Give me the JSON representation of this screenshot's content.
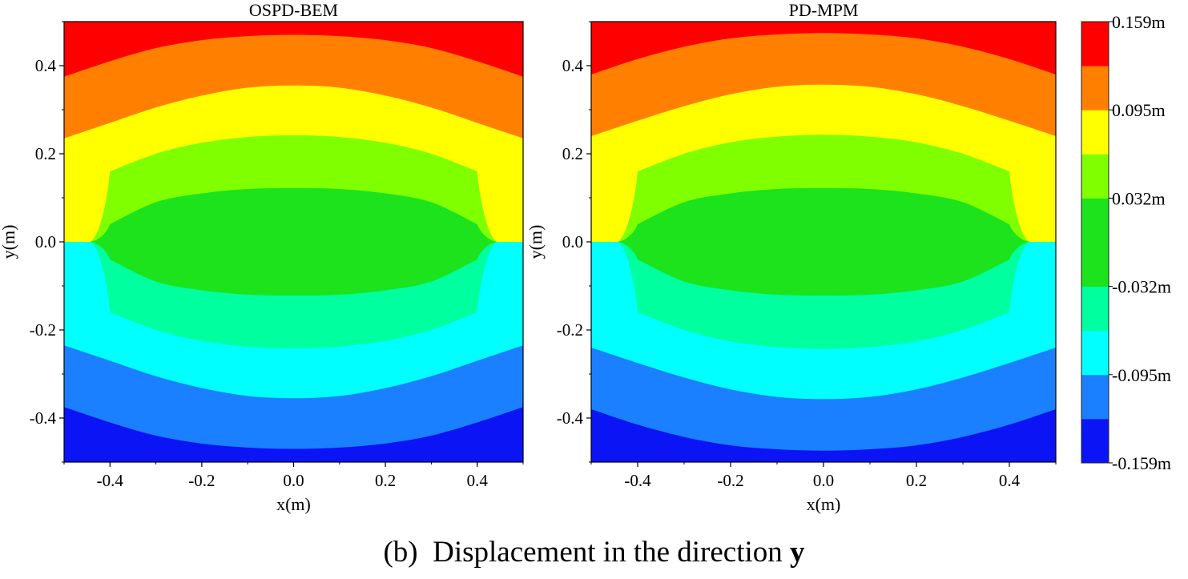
{
  "chart_data": [
    {
      "type": "contour",
      "title": "OSPD-BEM",
      "xlabel": "x(m)",
      "ylabel": "y(m)",
      "xlim": [
        -0.5,
        0.5
      ],
      "ylim": [
        -0.5,
        0.5
      ],
      "xticks": [
        -0.4,
        -0.2,
        0.0,
        0.2,
        0.4
      ],
      "xtick_labels": [
        "-0.4",
        "-0.2",
        "0.0",
        "0.2",
        "0.4"
      ],
      "yticks": [
        -0.4,
        -0.2,
        0.0,
        0.2,
        0.4
      ],
      "ytick_labels": [
        "-0.4",
        "-0.2",
        "0.0",
        "0.2",
        "0.4"
      ],
      "contour_boundaries": {
        "upper": {
          "x": [
            -0.5,
            -0.4,
            -0.3,
            -0.2,
            -0.1,
            0.0,
            0.1,
            0.2,
            0.3,
            0.4,
            0.5
          ],
          "0.127": [
            0.375,
            0.41,
            0.44,
            0.458,
            0.467,
            0.47,
            0.467,
            0.458,
            0.44,
            0.41,
            0.375
          ],
          "0.095": [
            0.235,
            0.27,
            0.305,
            0.332,
            0.35,
            0.355,
            0.35,
            0.332,
            0.305,
            0.27,
            0.235
          ],
          "0.064": [
            null,
            0.16,
            0.2,
            0.225,
            0.238,
            0.242,
            0.238,
            0.225,
            0.2,
            0.16,
            null
          ],
          "0.032": [
            null,
            0.04,
            0.09,
            0.11,
            0.12,
            0.122,
            0.12,
            0.11,
            0.09,
            0.04,
            null
          ]
        },
        "lower": {
          "x": [
            -0.5,
            -0.4,
            -0.3,
            -0.2,
            -0.1,
            0.0,
            0.1,
            0.2,
            0.3,
            0.4,
            0.5
          ],
          "-0.032": [
            null,
            -0.04,
            -0.09,
            -0.11,
            -0.12,
            -0.122,
            -0.12,
            -0.11,
            -0.09,
            -0.04,
            null
          ],
          "-0.064": [
            null,
            -0.16,
            -0.2,
            -0.225,
            -0.238,
            -0.242,
            -0.238,
            -0.225,
            -0.2,
            -0.16,
            null
          ],
          "-0.095": [
            -0.235,
            -0.27,
            -0.305,
            -0.332,
            -0.35,
            -0.355,
            -0.35,
            -0.332,
            -0.305,
            -0.27,
            -0.235
          ],
          "-0.127": [
            -0.375,
            -0.41,
            -0.44,
            -0.458,
            -0.467,
            -0.47,
            -0.467,
            -0.458,
            -0.44,
            -0.41,
            -0.375
          ]
        }
      }
    },
    {
      "type": "contour",
      "title": "PD-MPM",
      "xlabel": "x(m)",
      "ylabel": "y(m)",
      "xlim": [
        -0.5,
        0.5
      ],
      "ylim": [
        -0.5,
        0.5
      ],
      "xticks": [
        -0.4,
        -0.2,
        0.0,
        0.2,
        0.4
      ],
      "xtick_labels": [
        "-0.4",
        "-0.2",
        "0.0",
        "0.2",
        "0.4"
      ],
      "yticks": [
        -0.4,
        -0.2,
        0.0,
        0.2,
        0.4
      ],
      "ytick_labels": [
        "-0.4",
        "-0.2",
        "0.0",
        "0.2",
        "0.4"
      ],
      "contour_boundaries": {
        "upper": {
          "x": [
            -0.5,
            -0.4,
            -0.3,
            -0.2,
            -0.1,
            0.0,
            0.1,
            0.2,
            0.3,
            0.4,
            0.5
          ],
          "0.127": [
            0.38,
            0.415,
            0.443,
            0.462,
            0.471,
            0.474,
            0.471,
            0.462,
            0.443,
            0.415,
            0.38
          ],
          "0.095": [
            0.24,
            0.275,
            0.308,
            0.335,
            0.352,
            0.357,
            0.352,
            0.335,
            0.308,
            0.275,
            0.24
          ],
          "0.064": [
            null,
            0.16,
            0.2,
            0.226,
            0.239,
            0.243,
            0.239,
            0.226,
            0.2,
            0.16,
            null
          ],
          "0.032": [
            null,
            0.04,
            0.09,
            0.11,
            0.12,
            0.122,
            0.12,
            0.11,
            0.09,
            0.04,
            null
          ]
        },
        "lower": {
          "x": [
            -0.5,
            -0.4,
            -0.3,
            -0.2,
            -0.1,
            0.0,
            0.1,
            0.2,
            0.3,
            0.4,
            0.5
          ],
          "-0.032": [
            null,
            -0.04,
            -0.09,
            -0.11,
            -0.12,
            -0.122,
            -0.12,
            -0.11,
            -0.09,
            -0.04,
            null
          ],
          "-0.064": [
            null,
            -0.16,
            -0.2,
            -0.226,
            -0.239,
            -0.243,
            -0.239,
            -0.226,
            -0.2,
            -0.16,
            null
          ],
          "-0.095": [
            -0.24,
            -0.275,
            -0.308,
            -0.335,
            -0.352,
            -0.357,
            -0.352,
            -0.335,
            -0.308,
            -0.275,
            -0.24
          ],
          "-0.127": [
            -0.38,
            -0.415,
            -0.443,
            -0.462,
            -0.471,
            -0.474,
            -0.471,
            -0.462,
            -0.443,
            -0.415,
            -0.38
          ]
        }
      }
    }
  ],
  "colorbar": {
    "levels": [
      -0.159,
      -0.127,
      -0.095,
      -0.064,
      -0.032,
      0.0,
      0.032,
      0.064,
      0.095,
      0.127,
      0.159
    ],
    "colors_bottom_to_top": [
      "#0a14f5",
      "#1b80ff",
      "#00ffff",
      "#00ff9e",
      "#1ce31c",
      "#1ce31c",
      "#7fff00",
      "#ffff00",
      "#ff7f00",
      "#ff0000"
    ],
    "labels": [
      "0.159m",
      "0.095m",
      "0.032m",
      "-0.032m",
      "-0.095m",
      "-0.159m"
    ]
  },
  "caption": {
    "prefix": "(b)",
    "text": "Displacement in the direction",
    "axis": "y"
  }
}
